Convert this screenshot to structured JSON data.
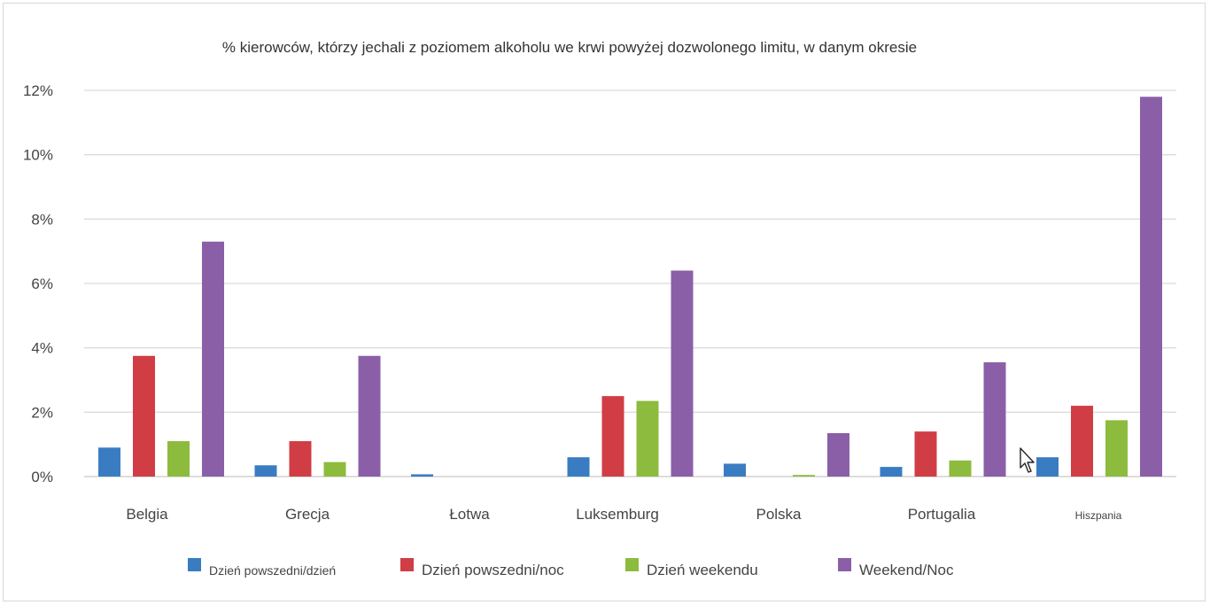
{
  "chart_data": {
    "type": "bar",
    "title": "% kierowców, którzy jechali z poziomem alkoholu we krwi powyżej dozwolonego limitu, w danym okresie",
    "xlabel": "",
    "ylabel": "",
    "ylim": [
      0,
      12
    ],
    "yticks": [
      0,
      2,
      4,
      6,
      8,
      10,
      12
    ],
    "ytick_labels": [
      "0%",
      "2%",
      "4%",
      "6%",
      "8%",
      "10%",
      "12%"
    ],
    "grid": true,
    "legend_position": "bottom",
    "categories": [
      "Belgia",
      "Grecja",
      "Łotwa",
      "Luksemburg",
      "Polska",
      "Portugalia",
      "Hiszpania"
    ],
    "series": [
      {
        "name": "Dzień powszedni/dzień",
        "color": "#3a7cc2",
        "values": [
          0.9,
          0.35,
          0.07,
          0.6,
          0.4,
          0.3,
          0.6
        ]
      },
      {
        "name": "Dzień powszedni/noc",
        "color": "#d13d45",
        "values": [
          3.75,
          1.1,
          0,
          2.5,
          0,
          1.4,
          2.2
        ]
      },
      {
        "name": "Dzień weekendu",
        "color": "#8dbb3e",
        "values": [
          1.1,
          0.45,
          0,
          2.35,
          0.05,
          0.5,
          1.75
        ]
      },
      {
        "name": "Weekend/Noc",
        "color": "#8a5fa8",
        "values": [
          7.3,
          3.75,
          0,
          6.4,
          1.35,
          3.55,
          11.8
        ]
      }
    ]
  }
}
